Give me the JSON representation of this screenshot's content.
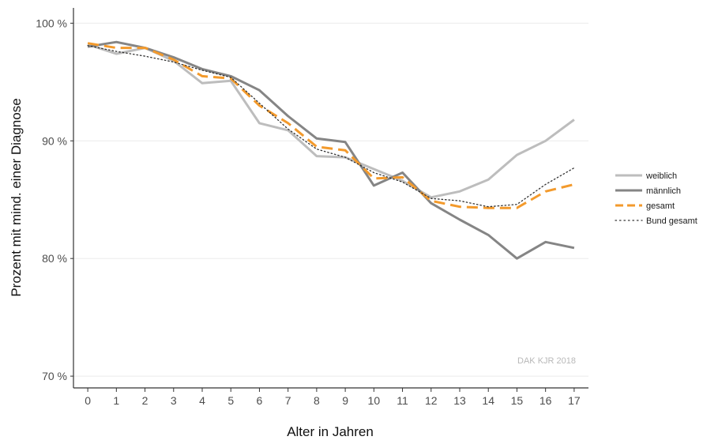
{
  "chart_data": {
    "type": "line",
    "title": "",
    "xlabel": "Alter in Jahren",
    "ylabel": "Prozent mit mind. einer Diagnose",
    "xlim": [
      -0.5,
      17.5
    ],
    "ylim": [
      69,
      101.3
    ],
    "x": [
      0,
      1,
      2,
      3,
      4,
      5,
      6,
      7,
      8,
      9,
      10,
      11,
      12,
      13,
      14,
      15,
      16,
      17
    ],
    "x_ticks": [
      "0",
      "1",
      "2",
      "3",
      "4",
      "5",
      "6",
      "7",
      "8",
      "9",
      "10",
      "11",
      "12",
      "13",
      "14",
      "15",
      "16",
      "17"
    ],
    "y_ticks": [
      {
        "value": 70,
        "label": "70 %"
      },
      {
        "value": 80,
        "label": "80 %"
      },
      {
        "value": 90,
        "label": "90 %"
      },
      {
        "value": 100,
        "label": "100 %"
      }
    ],
    "grid": "horizontal",
    "legend_position": "right",
    "annotation": "DAK KJR 2018",
    "series": [
      {
        "name": "weiblich",
        "color": "#bdbdbd",
        "style": "solid",
        "values": [
          98.2,
          97.4,
          97.9,
          96.8,
          94.9,
          95.1,
          91.5,
          90.9,
          88.7,
          88.6,
          87.6,
          86.6,
          85.2,
          85.7,
          86.7,
          88.8,
          90.0,
          91.8
        ]
      },
      {
        "name": "männlich",
        "color": "#858585",
        "style": "solid",
        "values": [
          98.0,
          98.4,
          97.9,
          97.1,
          96.1,
          95.5,
          94.3,
          92.1,
          90.2,
          89.9,
          86.2,
          87.3,
          84.7,
          83.3,
          82.0,
          80.0,
          81.4,
          80.9
        ]
      },
      {
        "name": "gesamt",
        "color": "#f39a2c",
        "style": "dashed",
        "values": [
          98.3,
          97.9,
          97.9,
          96.9,
          95.5,
          95.3,
          93.0,
          91.5,
          89.5,
          89.2,
          86.8,
          86.9,
          84.9,
          84.4,
          84.3,
          84.3,
          85.7,
          86.3
        ]
      },
      {
        "name": "Bund gesamt",
        "color": "#333333",
        "style": "dotted",
        "values": [
          98.1,
          97.6,
          97.2,
          96.7,
          96.0,
          95.4,
          93.2,
          91.0,
          89.3,
          88.6,
          87.3,
          86.5,
          85.1,
          84.9,
          84.4,
          84.6,
          86.3,
          87.7
        ]
      }
    ]
  }
}
